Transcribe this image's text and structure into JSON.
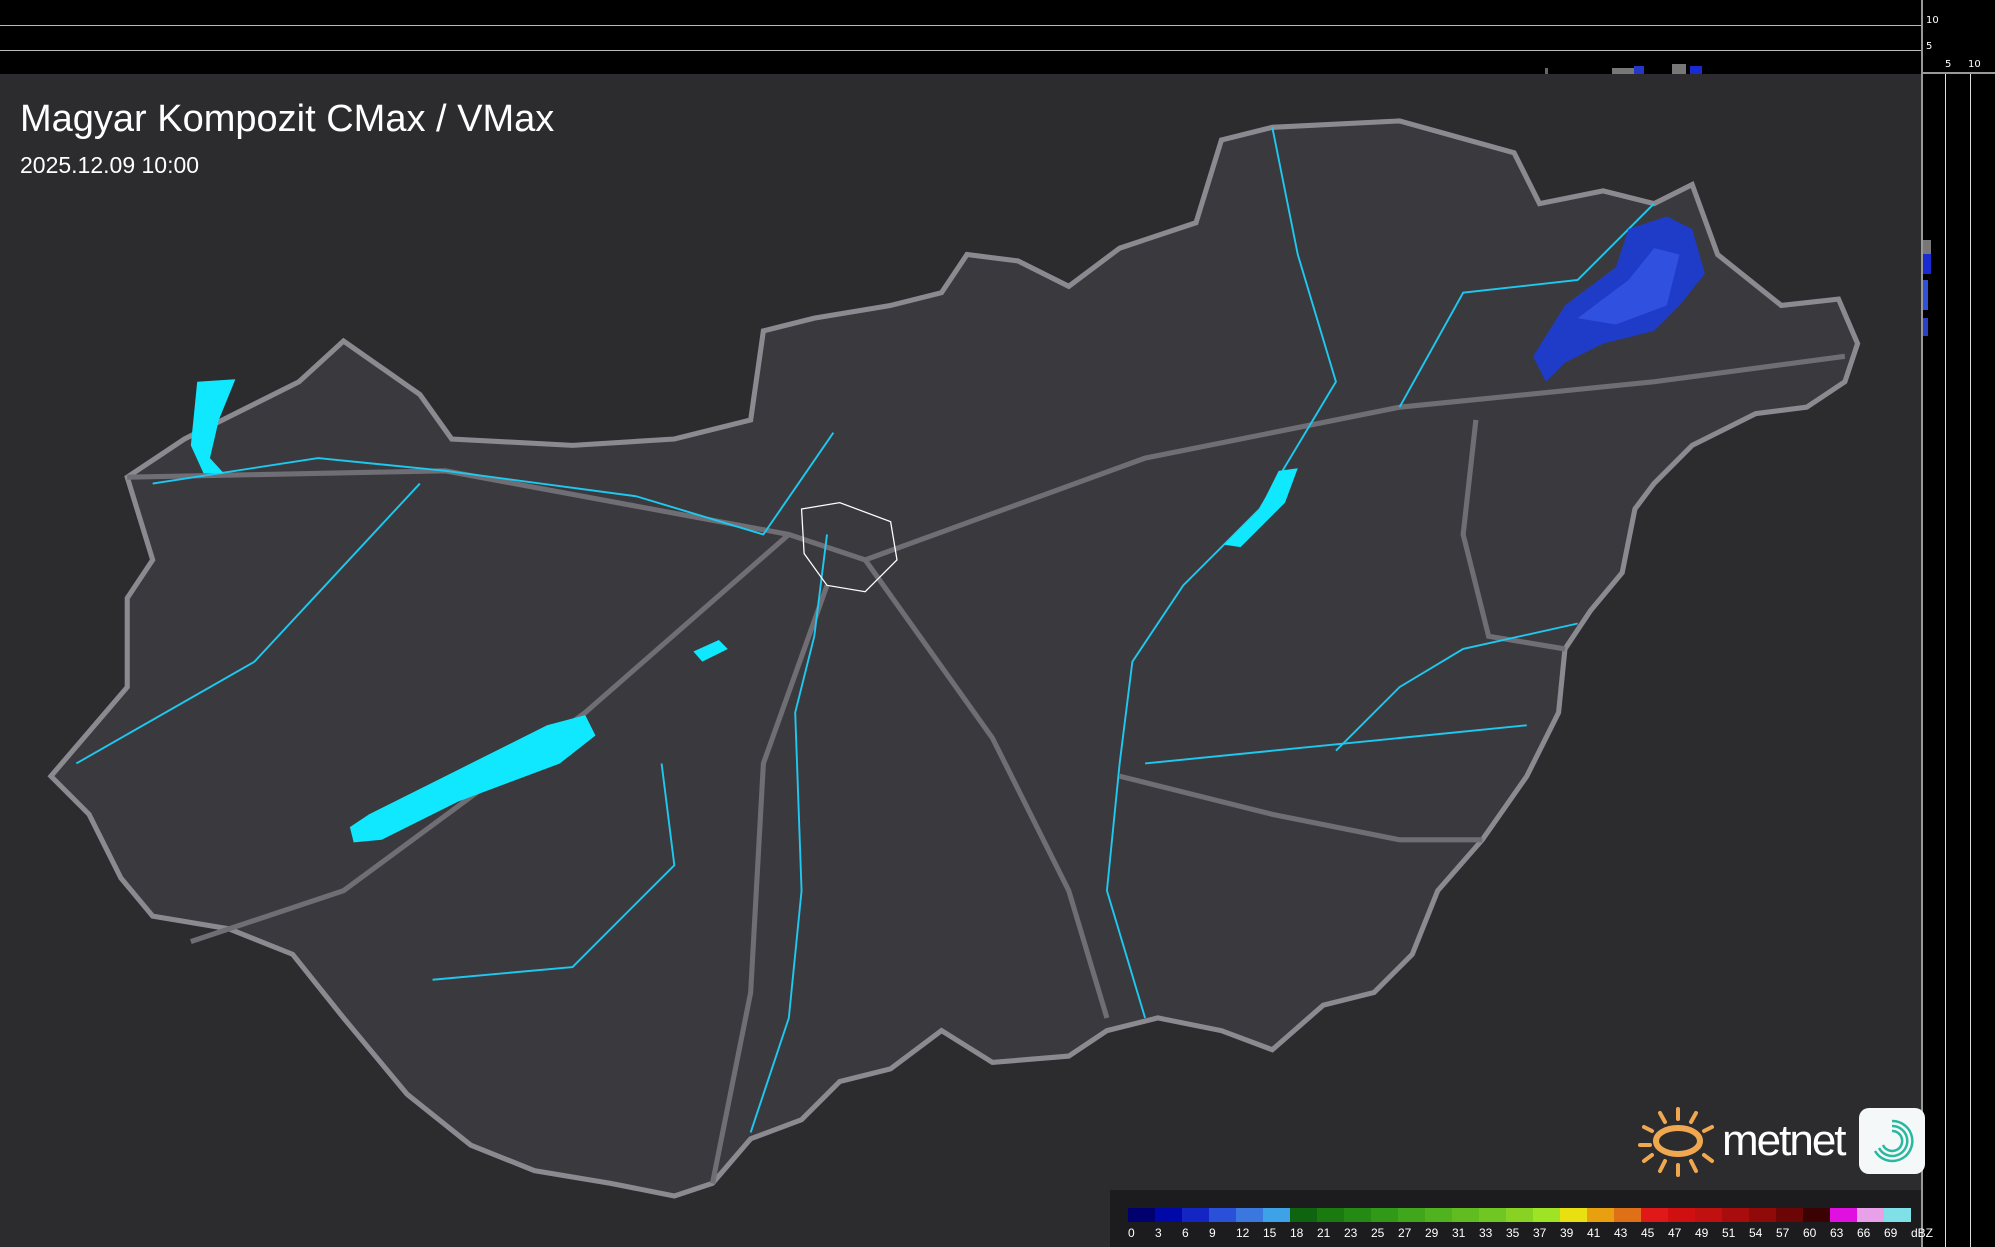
{
  "header": {
    "title": "Magyar Kompozit CMax / VMax",
    "timestamp": "2025.12.09 10:00"
  },
  "side_profile": {
    "vertical_ticks": [
      "10",
      "5"
    ],
    "horizontal_ticks": [
      "5",
      "10"
    ]
  },
  "legend": {
    "labels": [
      "0",
      "3",
      "6",
      "9",
      "12",
      "15",
      "18",
      "21",
      "23",
      "25",
      "27",
      "29",
      "31",
      "33",
      "35",
      "37",
      "39",
      "41",
      "43",
      "45",
      "47",
      "49",
      "51",
      "54",
      "57",
      "60",
      "63",
      "66",
      "69"
    ],
    "unit": "dBZ",
    "colors": [
      "#00006e",
      "#0008a8",
      "#1326c4",
      "#2a4fd8",
      "#3a78e0",
      "#3ea2e8",
      "#0f6410",
      "#1a7a10",
      "#258a14",
      "#309a18",
      "#40a61c",
      "#50b21e",
      "#60bc20",
      "#70c622",
      "#88d224",
      "#9ee424",
      "#e8e010",
      "#e8a010",
      "#e07018",
      "#e01818",
      "#d01010",
      "#c01010",
      "#a80c0c",
      "#900a0a",
      "#6c0606",
      "#3a0202",
      "#e010e0",
      "#e8a0e8",
      "#80e0e8"
    ]
  },
  "logo": {
    "text": "metnet"
  },
  "colors": {
    "background": "#2c2c2f",
    "country": "#3a3a3e",
    "border": "#8a8a90",
    "water": "#1ec8f0",
    "lake": "#10e8ff",
    "rain": "#1c3cd0"
  }
}
